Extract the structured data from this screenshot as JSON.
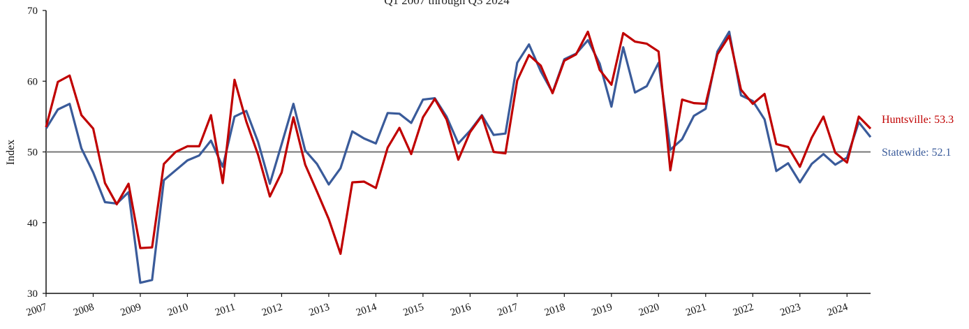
{
  "chart_data": {
    "type": "line",
    "subtitle": "Q1 2007 through Q3 2024",
    "ylabel": "Index",
    "xlabel": "",
    "ylim": [
      30,
      70
    ],
    "yticks": [
      30,
      40,
      50,
      60,
      70
    ],
    "xticks": [
      "2007",
      "2008",
      "2009",
      "2010",
      "2011",
      "2012",
      "2013",
      "2014",
      "2015",
      "2016",
      "2017",
      "2018",
      "2019",
      "2020",
      "2021",
      "2022",
      "2023",
      "2024"
    ],
    "x_start": "2007 Q1",
    "x_end": "2024 Q3",
    "reference_line": 50,
    "colors": {
      "Huntsville": "#c00000",
      "Statewide": "#3a5b9a",
      "reference": "#777777"
    },
    "series": [
      {
        "name": "Huntsville",
        "end_label": "Huntsville: 53.3",
        "values": [
          53.5,
          59.9,
          60.8,
          55.2,
          53.3,
          45.6,
          42.6,
          45.5,
          36.4,
          36.5,
          48.3,
          50.0,
          50.8,
          50.8,
          55.2,
          45.6,
          60.2,
          54.3,
          49.6,
          43.7,
          47.1,
          54.9,
          48.2,
          44.4,
          40.5,
          35.6,
          45.7,
          45.8,
          44.9,
          50.6,
          53.4,
          49.7,
          54.9,
          57.5,
          54.6,
          48.9,
          52.8,
          55.1,
          50.0,
          49.8,
          60.1,
          63.7,
          62.2,
          58.3,
          62.9,
          63.8,
          67.0,
          61.6,
          59.5,
          66.8,
          65.6,
          65.3,
          64.2,
          47.4,
          57.4,
          56.9,
          56.8,
          63.8,
          66.4,
          58.8,
          56.8,
          58.2,
          51.1,
          50.7,
          47.9,
          52.0,
          55.0,
          49.9,
          48.5,
          55.0,
          53.3
        ]
      },
      {
        "name": "Statewide",
        "end_label": "Statewide: 52.1",
        "values": [
          53.3,
          56.0,
          56.8,
          50.5,
          47.1,
          42.9,
          42.7,
          44.3,
          31.5,
          31.9,
          46.0,
          47.4,
          48.8,
          49.5,
          51.6,
          47.9,
          55.0,
          55.8,
          51.4,
          45.5,
          51.1,
          56.8,
          50.2,
          48.3,
          45.4,
          47.7,
          52.9,
          51.9,
          51.2,
          55.5,
          55.4,
          54.1,
          57.4,
          57.6,
          55.0,
          51.2,
          53.0,
          55.2,
          52.4,
          52.6,
          62.6,
          65.2,
          61.4,
          58.4,
          63.1,
          63.9,
          65.8,
          62.5,
          56.4,
          64.8,
          58.4,
          59.3,
          62.6,
          50.3,
          51.8,
          55.1,
          56.1,
          64.2,
          67.0,
          58.0,
          57.2,
          54.6,
          47.3,
          48.4,
          45.7,
          48.3,
          49.7,
          48.2,
          49.2,
          54.2,
          52.1
        ]
      }
    ]
  }
}
